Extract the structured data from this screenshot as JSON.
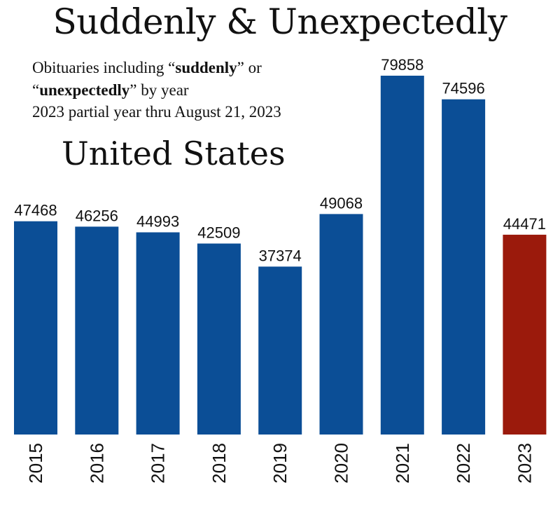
{
  "title": "Suddenly & Unexpectedly",
  "subtitle": {
    "line1_pre": "Obituaries including “",
    "line1_bold": "suddenly",
    "line1_post": "” or",
    "line2_pre": "“",
    "line2_bold": "unexpectedly",
    "line2_post": "” by year",
    "line3": "2023 partial year thru August 21, 2023"
  },
  "region": "United States",
  "colors": {
    "bar": "#0b4e96",
    "highlight": "#9b1a0c",
    "text": "#111111"
  },
  "chart_data": {
    "type": "bar",
    "title": "Suddenly & Unexpectedly",
    "subtitle": "Obituaries including “suddenly” or “unexpectedly” by year — 2023 partial year thru August 21, 2023",
    "region": "United States",
    "categories": [
      "2015",
      "2016",
      "2017",
      "2018",
      "2019",
      "2020",
      "2021",
      "2022",
      "2023"
    ],
    "values": [
      47468,
      46256,
      44993,
      42509,
      37374,
      49068,
      79858,
      74596,
      44471
    ],
    "highlight_category": "2023",
    "xlabel": "",
    "ylabel": "",
    "ylim": [
      0,
      82000
    ],
    "grid": false,
    "legend": "none"
  }
}
